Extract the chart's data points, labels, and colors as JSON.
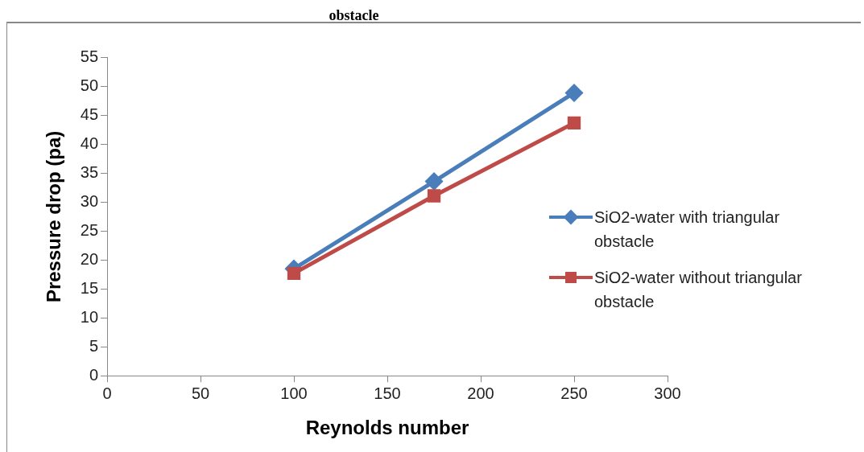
{
  "chart_data": {
    "type": "line",
    "title": "obstacle",
    "xlabel": "Reynolds number",
    "ylabel": "Pressure drop (pa)",
    "x": [
      100,
      175,
      250
    ],
    "series": [
      {
        "name": "SiO2-water with triangular obstacle",
        "color": "#4a7ebb",
        "marker": "diamond",
        "values": [
          18.5,
          33.6,
          48.9
        ]
      },
      {
        "name": "SiO2-water without triangular obstacle",
        "color": "#be4b48",
        "marker": "square",
        "values": [
          17.7,
          31.1,
          43.7
        ]
      }
    ],
    "xlim": [
      0,
      300
    ],
    "xticks": [
      0,
      50,
      100,
      150,
      200,
      250,
      300
    ],
    "ylim": [
      0,
      55
    ],
    "yticks": [
      0,
      5,
      10,
      15,
      20,
      25,
      30,
      35,
      40,
      45,
      50,
      55
    ],
    "grid": false,
    "legend": "right",
    "line_style": "solid"
  }
}
